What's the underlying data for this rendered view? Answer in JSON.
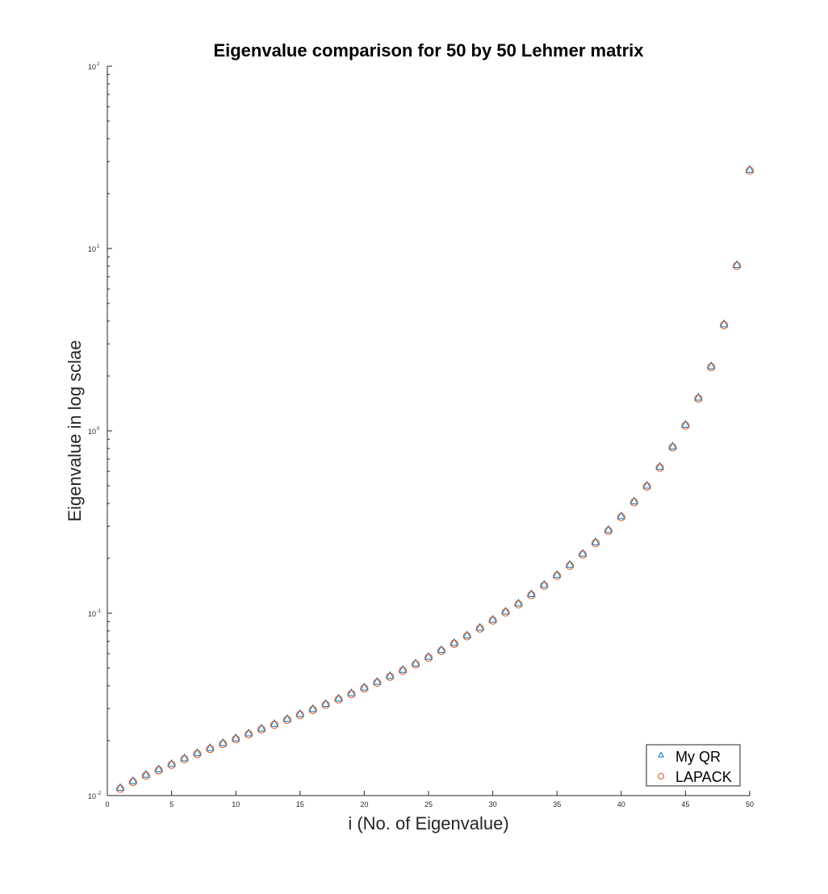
{
  "chart_data": {
    "type": "scatter",
    "title": "Eigenvalue comparison for 50 by 50 Lehmer matrix",
    "xlabel": "i (No. of Eigenvalue)",
    "ylabel": "Eigenvalue in log sclae",
    "xlim": [
      0,
      50
    ],
    "ylim": [
      0.01,
      100
    ],
    "yscale": "log",
    "grid": false,
    "legend_position": "bottom-right",
    "x_ticks": [
      "0",
      "5",
      "10",
      "15",
      "20",
      "25",
      "30",
      "35",
      "40",
      "45",
      "50"
    ],
    "y_ticks": [
      {
        "base": "10",
        "exp": "-2"
      },
      {
        "base": "10",
        "exp": "-1"
      },
      {
        "base": "10",
        "exp": "0"
      },
      {
        "base": "10",
        "exp": "1"
      },
      {
        "base": "10",
        "exp": "2"
      }
    ],
    "x": [
      1,
      2,
      3,
      4,
      5,
      6,
      7,
      8,
      9,
      10,
      11,
      12,
      13,
      14,
      15,
      16,
      17,
      18,
      19,
      20,
      21,
      22,
      23,
      24,
      25,
      26,
      27,
      28,
      29,
      30,
      31,
      32,
      33,
      34,
      35,
      36,
      37,
      38,
      39,
      40,
      41,
      42,
      43,
      44,
      45,
      46,
      47,
      48,
      49,
      50
    ],
    "series": [
      {
        "name": "My QR",
        "marker": "triangle",
        "color": "#0072BD",
        "values": [
          0.011,
          0.012,
          0.013,
          0.0139,
          0.0149,
          0.016,
          0.0171,
          0.0182,
          0.0194,
          0.0206,
          0.0219,
          0.0233,
          0.0247,
          0.0263,
          0.028,
          0.0298,
          0.0318,
          0.034,
          0.0364,
          0.0391,
          0.042,
          0.0453,
          0.0489,
          0.053,
          0.0576,
          0.0628,
          0.0687,
          0.0755,
          0.0832,
          0.0921,
          0.102,
          0.113,
          0.127,
          0.143,
          0.162,
          0.184,
          0.212,
          0.245,
          0.286,
          0.34,
          0.41,
          0.5,
          0.635,
          0.82,
          1.08,
          1.52,
          2.26,
          3.84,
          8.12,
          27.0
        ]
      },
      {
        "name": "LAPACK",
        "marker": "circle",
        "color": "#D95319",
        "values": [
          0.011,
          0.012,
          0.013,
          0.0139,
          0.0149,
          0.016,
          0.0171,
          0.0182,
          0.0194,
          0.0206,
          0.0219,
          0.0233,
          0.0247,
          0.0263,
          0.028,
          0.0298,
          0.0318,
          0.034,
          0.0364,
          0.0391,
          0.042,
          0.0453,
          0.0489,
          0.053,
          0.0576,
          0.0628,
          0.0687,
          0.0755,
          0.0832,
          0.0921,
          0.102,
          0.113,
          0.127,
          0.143,
          0.162,
          0.184,
          0.212,
          0.245,
          0.286,
          0.34,
          0.41,
          0.5,
          0.635,
          0.82,
          1.08,
          1.52,
          2.26,
          3.84,
          8.12,
          27.0
        ]
      }
    ]
  }
}
